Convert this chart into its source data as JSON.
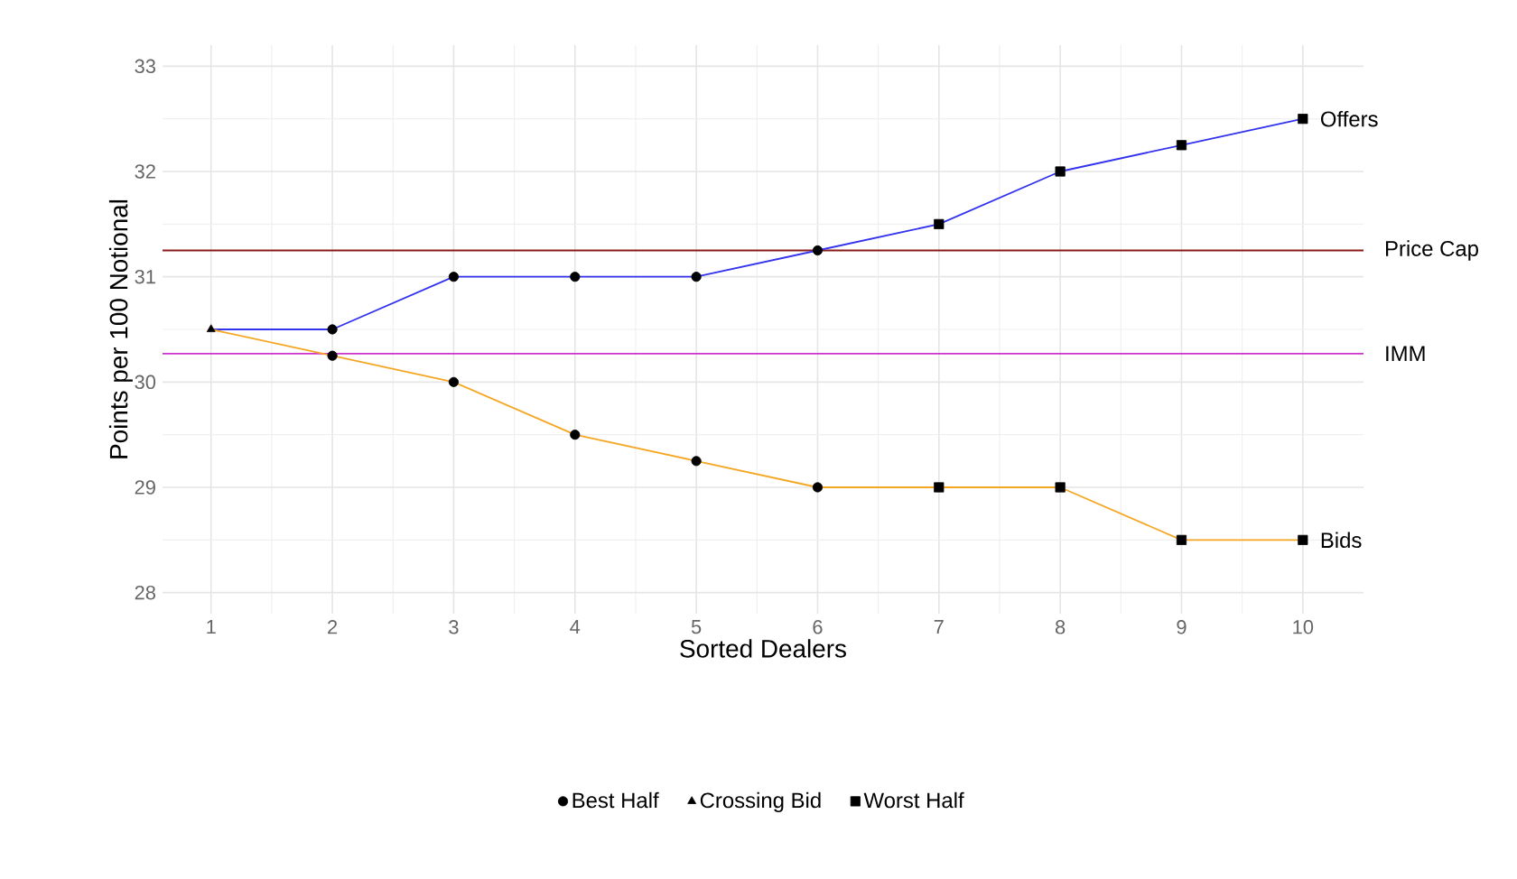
{
  "chart_data": {
    "type": "line",
    "xlabel": "Sorted Dealers",
    "ylabel": "Points per 100 Notional",
    "x": [
      1,
      2,
      3,
      4,
      5,
      6,
      7,
      8,
      9,
      10
    ],
    "series": [
      {
        "name": "Offers",
        "color": "#3333ee",
        "marker": "none",
        "values": [
          30.5,
          30.5,
          31,
          31,
          31,
          31.25,
          31.5,
          32,
          32.25,
          32.5
        ]
      },
      {
        "name": "Bids",
        "color": "#f5a623",
        "marker": "none",
        "values": [
          30.5,
          30.25,
          30,
          29.5,
          29.25,
          29,
          29,
          29,
          28.5,
          28.5
        ]
      },
      {
        "name": "Best Half",
        "type": "scatter",
        "color": "#000000",
        "marker": "circle",
        "x": [
          2,
          3,
          4,
          5,
          6,
          2,
          3,
          4,
          5,
          6
        ],
        "values": [
          30.5,
          31,
          31,
          31,
          31.25,
          30.25,
          30,
          29.5,
          29.25,
          29
        ]
      },
      {
        "name": "Crossing Bid",
        "type": "scatter",
        "color": "#000000",
        "marker": "triangle",
        "x": [
          1
        ],
        "values": [
          30.5
        ]
      },
      {
        "name": "Worst Half",
        "type": "scatter",
        "color": "#000000",
        "marker": "square",
        "x": [
          7,
          8,
          9,
          10,
          7,
          8,
          9,
          10
        ],
        "values": [
          31.5,
          32,
          32.25,
          32.5,
          29,
          29,
          28.5,
          28.5
        ]
      }
    ],
    "xlim": [
      0.6,
      10.5
    ],
    "ylim": [
      27.8,
      33.2
    ],
    "xticks": [
      1,
      2,
      3,
      4,
      5,
      6,
      7,
      8,
      9,
      10
    ],
    "yticks": [
      28,
      29,
      30,
      31,
      32,
      33
    ],
    "ref_lines": [
      {
        "axis": "y",
        "value": 31.25,
        "label": "Price Cap",
        "color": "#8b1a1a"
      },
      {
        "axis": "y",
        "value": 30.27,
        "label": "IMM",
        "color": "#cc33cc"
      }
    ],
    "grid": true,
    "legend": "bottom"
  }
}
